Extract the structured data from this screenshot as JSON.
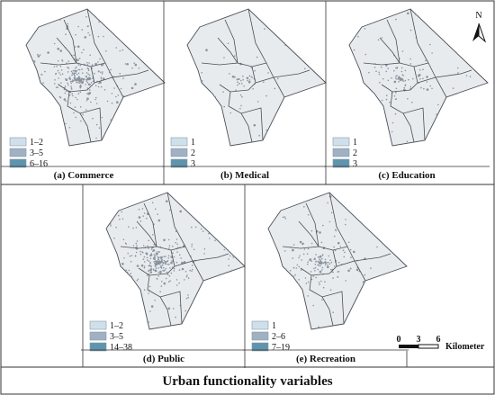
{
  "title": "Urban functionality variables",
  "north_label": "N",
  "scale": {
    "ticks": [
      "0",
      "3",
      "6"
    ],
    "unit": "Kilometer"
  },
  "colors": {
    "map_fill": "#e8ebee",
    "border": "#4a4f56",
    "point": "#8a949f",
    "legend": [
      "#cfe0ea",
      "#9fb1c2",
      "#5f94ad"
    ]
  },
  "panels": [
    {
      "id": "a",
      "caption": "(a) Commerce",
      "legend": [
        "1–2",
        "3–5",
        "6–16"
      ],
      "density": 0.95
    },
    {
      "id": "b",
      "caption": "(b) Medical",
      "legend": [
        "1",
        "2",
        "3"
      ],
      "density": 0.18
    },
    {
      "id": "c",
      "caption": "(c) Education",
      "legend": [
        "1",
        "2",
        "3"
      ],
      "density": 0.35
    },
    {
      "id": "d",
      "caption": "(d) Public",
      "legend": [
        "1–2",
        "3–5",
        "14–38"
      ],
      "density": 1.0
    },
    {
      "id": "e",
      "caption": "(e) Recreation",
      "legend": [
        "1",
        "2–6",
        "7–19"
      ],
      "density": 0.55
    }
  ]
}
